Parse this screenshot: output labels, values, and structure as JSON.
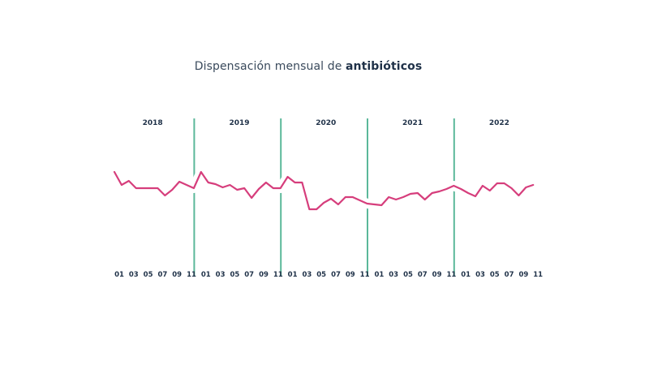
{
  "chart_data": {
    "type": "line",
    "title_regular": "Dispensación mensual de ",
    "title_bold": "antibióticos",
    "xlabel": "",
    "ylabel": "",
    "ylim": [
      0,
      100
    ],
    "grid": false,
    "legend": "none",
    "years": [
      "2018",
      "2019",
      "2020",
      "2021",
      "2022"
    ],
    "month_ticks": [
      "01",
      "03",
      "05",
      "07",
      "09",
      "11"
    ],
    "series": [
      {
        "name": "antibióticos",
        "color": "#d63e7c",
        "values_by_year": {
          "2018": [
            88,
            72,
            77,
            68,
            68,
            68,
            68,
            59,
            66,
            76,
            72,
            68
          ],
          "2019": [
            88,
            75,
            73,
            69,
            72,
            66,
            68,
            56,
            67,
            75,
            68,
            68
          ],
          "2020": [
            82,
            75,
            75,
            42,
            42,
            50,
            55,
            48,
            57,
            57,
            53,
            49
          ],
          "2021": [
            48,
            47,
            57,
            54,
            57,
            61,
            62,
            54,
            62,
            64,
            67,
            71
          ],
          "2022": [
            67,
            62,
            58,
            71,
            65,
            74,
            74,
            68,
            59,
            69,
            72
          ]
        }
      }
    ],
    "colors": {
      "line": "#d63e7c",
      "separator": "#5bb89a",
      "text": "#1f3148"
    }
  }
}
